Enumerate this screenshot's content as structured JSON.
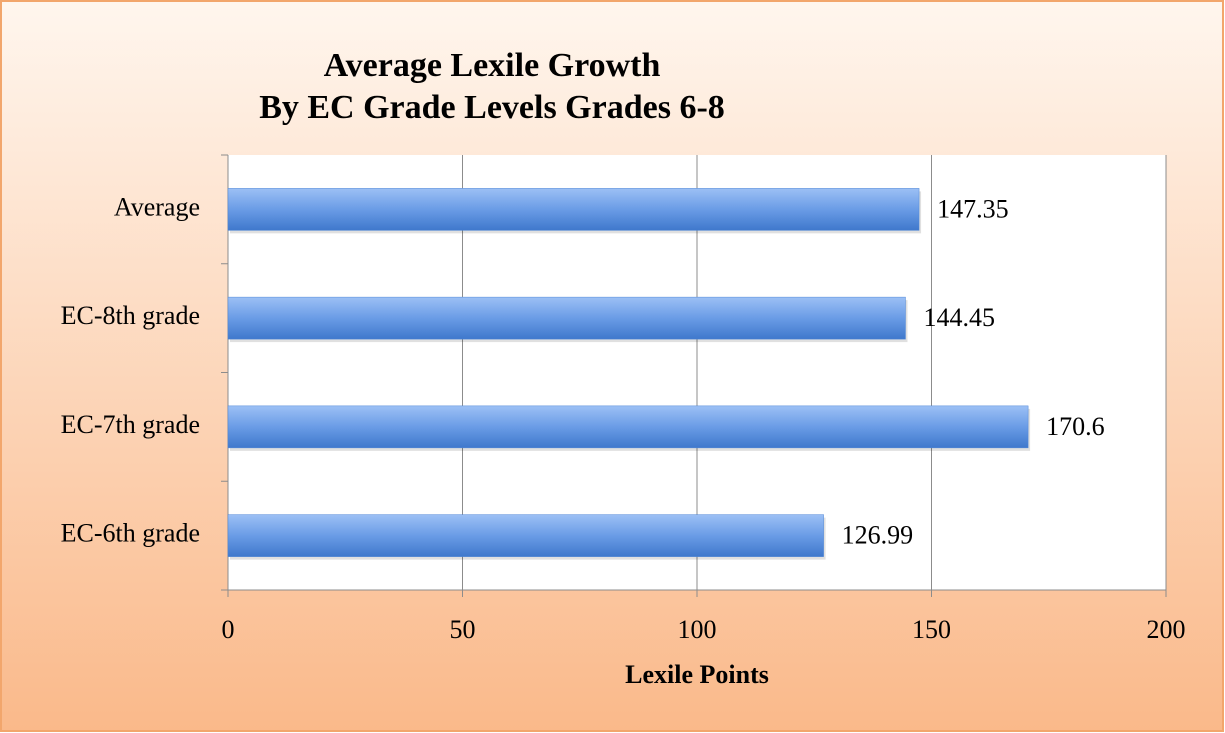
{
  "chart_data": {
    "type": "hbar",
    "title": [
      "Average Lexile Growth",
      "By EC Grade Levels Grades 6-8"
    ],
    "categories": [
      "Average",
      "EC-8th grade",
      "EC-7th grade",
      "EC-6th grade"
    ],
    "values": [
      147.35,
      144.45,
      170.6,
      126.99
    ],
    "color": "#4f86d6",
    "xlabel": "Lexile Points",
    "xlim": [
      0,
      200
    ],
    "xticks": [
      0,
      50,
      100,
      150,
      200
    ],
    "grid": true
  }
}
